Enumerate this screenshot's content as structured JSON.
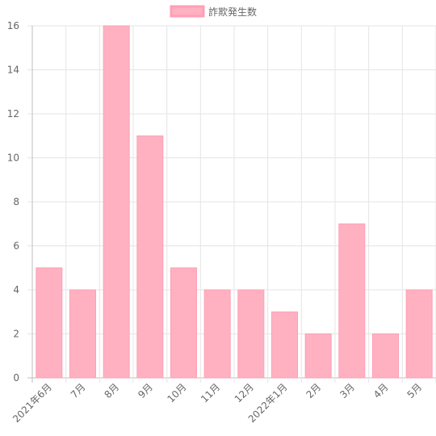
{
  "chart_data": {
    "type": "bar",
    "categories": [
      "2021年6月",
      "7月",
      "8月",
      "9月",
      "10月",
      "11月",
      "12月",
      "2022年1月",
      "2月",
      "3月",
      "4月",
      "5月"
    ],
    "series": [
      {
        "name": "詐欺発生数",
        "values": [
          5,
          4,
          16,
          11,
          5,
          4,
          4,
          3,
          2,
          7,
          2,
          4
        ]
      }
    ],
    "ylim": [
      0,
      16
    ],
    "yticks": [
      0,
      2,
      4,
      6,
      8,
      10,
      12,
      14,
      16
    ],
    "grid": true,
    "legend_position": "top-center",
    "colors": {
      "bar_fill": "#ffb1c1",
      "bar_border": "#ff9fb4",
      "grid": "#e5e5e5",
      "axis": "#bdbdbd",
      "tick_text": "#666666"
    }
  }
}
